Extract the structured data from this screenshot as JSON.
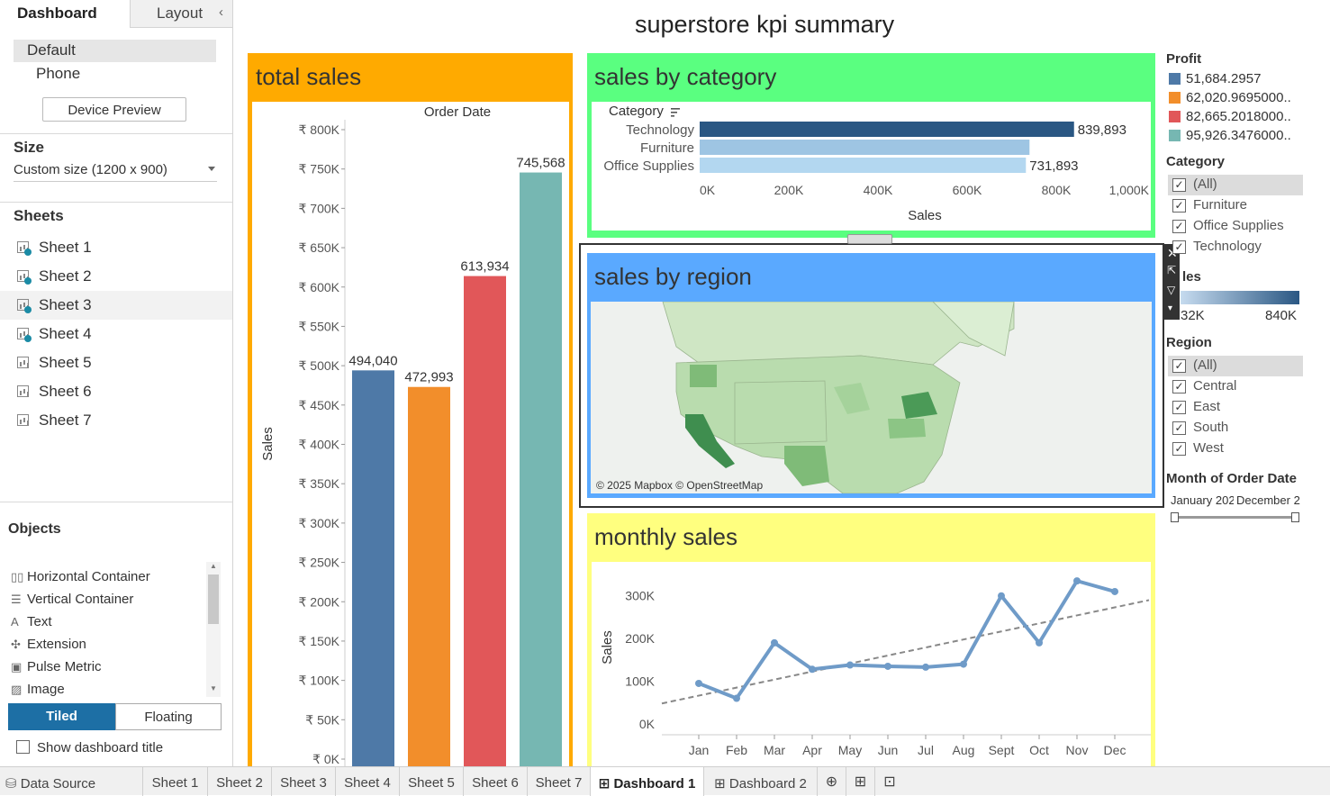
{
  "left_panel": {
    "tabs": [
      "Dashboard",
      "Layout"
    ],
    "device": {
      "default": "Default",
      "phone": "Phone",
      "preview_button": "Device Preview"
    },
    "size": {
      "heading": "Size",
      "value": "Custom size (1200 x 900)"
    },
    "sheets_heading": "Sheets",
    "sheets": [
      "Sheet 1",
      "Sheet 2",
      "Sheet 3",
      "Sheet 4",
      "Sheet 5",
      "Sheet 6",
      "Sheet 7"
    ],
    "objects_heading": "Objects",
    "objects": [
      "Horizontal Container",
      "Vertical Container",
      "Text",
      "Extension",
      "Pulse Metric",
      "Image"
    ],
    "tiled": "Tiled",
    "floating": "Floating",
    "show_title": "Show dashboard title"
  },
  "bottom_tabs": [
    "Data Source",
    "Sheet 1",
    "Sheet 2",
    "Sheet 3",
    "Sheet 4",
    "Sheet 5",
    "Sheet 6",
    "Sheet 7",
    "Dashboard 1",
    "Dashboard 2"
  ],
  "dashboard": {
    "title": "superstore kpi summary",
    "panels": {
      "total_sales": {
        "title": "total sales",
        "color": "#ffaa00"
      },
      "sales_by_category": {
        "title": "sales by category",
        "color": "#5aff80"
      },
      "sales_by_region": {
        "title": "sales by region",
        "color": "#5aa9ff",
        "attribution": "© 2025 Mapbox © OpenStreetMap"
      },
      "monthly_sales": {
        "title": "monthly sales",
        "color": "#ffff7f"
      }
    }
  },
  "chart_data": [
    {
      "id": "total_sales",
      "type": "bar",
      "xlabel": "Order Date",
      "ylabel": "Sales",
      "ylim": [
        0,
        800000
      ],
      "ticks": [
        "₹ 0K",
        "₹ 50K",
        "₹ 100K",
        "₹ 150K",
        "₹ 200K",
        "₹ 250K",
        "₹ 300K",
        "₹ 350K",
        "₹ 400K",
        "₹ 450K",
        "₹ 500K",
        "₹ 550K",
        "₹ 600K",
        "₹ 650K",
        "₹ 700K",
        "₹ 750K",
        "₹ 800K"
      ],
      "values": [
        494040,
        472993,
        613934,
        745568
      ],
      "labels": [
        "494,040",
        "472,993",
        "613,934",
        "745,568"
      ],
      "colors": [
        "#4e79a7",
        "#f28e2b",
        "#e15759",
        "#76b7b2"
      ]
    },
    {
      "id": "sales_by_category",
      "type": "bar",
      "orientation": "horizontal",
      "header": "Category",
      "xlabel": "Sales",
      "xlim": [
        0,
        1000000
      ],
      "ticks": [
        "0K",
        "200K",
        "400K",
        "600K",
        "800K",
        "1,000K"
      ],
      "categories": [
        "Technology",
        "Furniture",
        "Office Supplies"
      ],
      "values": [
        839893,
        740000,
        731893
      ],
      "labels": [
        "839,893",
        "",
        "731,893"
      ],
      "colors": [
        "#2a5783",
        "#9ec5e3",
        "#b3d7f0"
      ]
    },
    {
      "id": "monthly_sales",
      "type": "line",
      "ylabel": "Sales",
      "ylim": [
        0,
        350000
      ],
      "ticks": [
        "0K",
        "100K",
        "200K",
        "300K"
      ],
      "categories": [
        "Jan",
        "Feb",
        "Mar",
        "Apr",
        "May",
        "Jun",
        "Jul",
        "Aug",
        "Sept",
        "Oct",
        "Nov",
        "Dec"
      ],
      "values": [
        95000,
        60000,
        190000,
        128000,
        138000,
        135000,
        133000,
        140000,
        300000,
        190000,
        335000,
        310000
      ],
      "trend": [
        48000,
        290000
      ],
      "color": "#6f9bc8"
    }
  ],
  "legend": {
    "profit_heading": "Profit",
    "profit": [
      {
        "label": "51,684.2957",
        "color": "#4e79a7"
      },
      {
        "label": "62,020.9695000..",
        "color": "#f28e2b"
      },
      {
        "label": "82,665.2018000..",
        "color": "#e15759"
      },
      {
        "label": "95,926.3476000..",
        "color": "#76b7b2"
      }
    ],
    "category_heading": "Category",
    "category": [
      "(All)",
      "Furniture",
      "Office Supplies",
      "Technology"
    ],
    "sales_heading": "les",
    "sales_min": "32K",
    "sales_max": "840K",
    "region_heading": "Region",
    "region": [
      "(All)",
      "Central",
      "East",
      "South",
      "West"
    ],
    "month_heading": "Month of Order Date",
    "month_start": "January 202",
    "month_end": "December 2"
  }
}
